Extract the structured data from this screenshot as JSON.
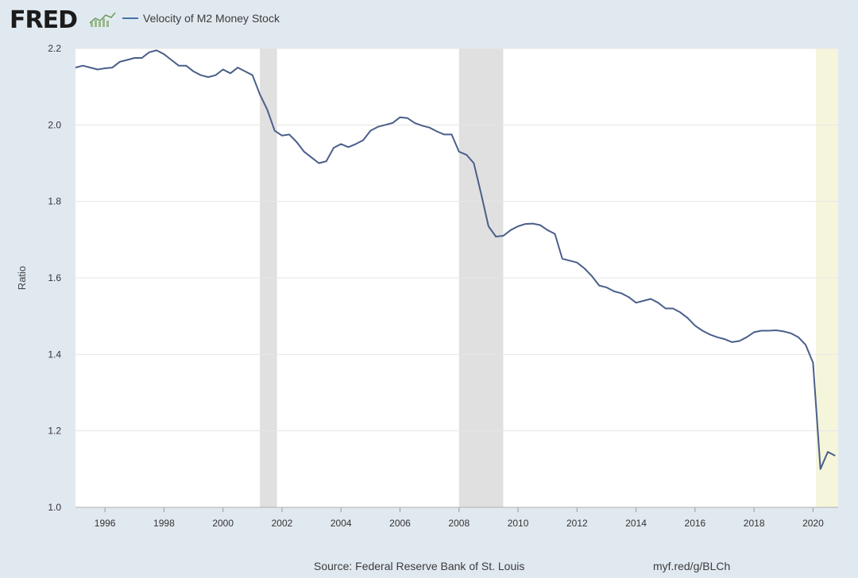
{
  "header": {
    "logo_text": "FRED",
    "legend_label": "Velocity of M2 Money Stock"
  },
  "footer": {
    "source": "Source: Federal Reserve Bank of St. Louis",
    "link": "myf.red/g/BLCh"
  },
  "colors": {
    "line": "#4a5f8a",
    "recession": "#e0e0e0",
    "projection": "#f5f5dc",
    "plot_bg": "#ffffff",
    "grid": "#e6e6e6"
  },
  "chart_data": {
    "type": "line",
    "title": "",
    "xlabel": "",
    "ylabel": "Ratio",
    "xlim": [
      1995.0,
      2020.85
    ],
    "ylim": [
      1.0,
      2.2
    ],
    "x_ticks": [
      1996,
      1998,
      2000,
      2002,
      2004,
      2006,
      2008,
      2010,
      2012,
      2014,
      2016,
      2018,
      2020
    ],
    "y_ticks": [
      1.0,
      1.2,
      1.4,
      1.6,
      1.8,
      2.0,
      2.2
    ],
    "y_tick_labels": [
      "1.0",
      "1.2",
      "1.4",
      "1.6",
      "1.8",
      "2.0",
      "2.2"
    ],
    "grid": true,
    "recession_bands": [
      [
        2001.25,
        2001.83
      ],
      [
        2008.0,
        2009.5
      ]
    ],
    "highlight_band": [
      2020.1,
      2020.85
    ],
    "series": [
      {
        "name": "Velocity of M2 Money Stock",
        "x": [
          1995.0,
          1995.25,
          1995.5,
          1995.75,
          1996.0,
          1996.25,
          1996.5,
          1996.75,
          1997.0,
          1997.25,
          1997.5,
          1997.75,
          1998.0,
          1998.25,
          1998.5,
          1998.75,
          1999.0,
          1999.25,
          1999.5,
          1999.75,
          2000.0,
          2000.25,
          2000.5,
          2000.75,
          2001.0,
          2001.25,
          2001.5,
          2001.75,
          2002.0,
          2002.25,
          2002.5,
          2002.75,
          2003.0,
          2003.25,
          2003.5,
          2003.75,
          2004.0,
          2004.25,
          2004.5,
          2004.75,
          2005.0,
          2005.25,
          2005.5,
          2005.75,
          2006.0,
          2006.25,
          2006.5,
          2006.75,
          2007.0,
          2007.25,
          2007.5,
          2007.75,
          2008.0,
          2008.25,
          2008.5,
          2008.75,
          2009.0,
          2009.25,
          2009.5,
          2009.75,
          2010.0,
          2010.25,
          2010.5,
          2010.75,
          2011.0,
          2011.25,
          2011.5,
          2011.75,
          2012.0,
          2012.25,
          2012.5,
          2012.75,
          2013.0,
          2013.25,
          2013.5,
          2013.75,
          2014.0,
          2014.25,
          2014.5,
          2014.75,
          2015.0,
          2015.25,
          2015.5,
          2015.75,
          2016.0,
          2016.25,
          2016.5,
          2016.75,
          2017.0,
          2017.25,
          2017.5,
          2017.75,
          2018.0,
          2018.25,
          2018.5,
          2018.75,
          2019.0,
          2019.25,
          2019.5,
          2019.75,
          2020.0,
          2020.25,
          2020.5,
          2020.75
        ],
        "y": [
          2.15,
          2.155,
          2.15,
          2.145,
          2.148,
          2.15,
          2.165,
          2.17,
          2.175,
          2.175,
          2.19,
          2.195,
          2.185,
          2.17,
          2.155,
          2.155,
          2.14,
          2.13,
          2.125,
          2.13,
          2.145,
          2.135,
          2.15,
          2.14,
          2.13,
          2.08,
          2.04,
          1.985,
          1.972,
          1.975,
          1.955,
          1.93,
          1.915,
          1.9,
          1.905,
          1.94,
          1.95,
          1.942,
          1.95,
          1.96,
          1.985,
          1.995,
          2.0,
          2.005,
          2.02,
          2.018,
          2.005,
          1.998,
          1.993,
          1.983,
          1.975,
          1.975,
          1.93,
          1.922,
          1.9,
          1.82,
          1.735,
          1.708,
          1.71,
          1.725,
          1.735,
          1.741,
          1.742,
          1.738,
          1.725,
          1.715,
          1.65,
          1.645,
          1.64,
          1.625,
          1.605,
          1.58,
          1.575,
          1.565,
          1.56,
          1.55,
          1.535,
          1.54,
          1.545,
          1.535,
          1.52,
          1.52,
          1.51,
          1.495,
          1.475,
          1.462,
          1.452,
          1.445,
          1.44,
          1.432,
          1.435,
          1.445,
          1.458,
          1.462,
          1.462,
          1.463,
          1.46,
          1.455,
          1.445,
          1.425,
          1.378,
          1.1,
          1.145,
          1.135
        ]
      }
    ]
  }
}
